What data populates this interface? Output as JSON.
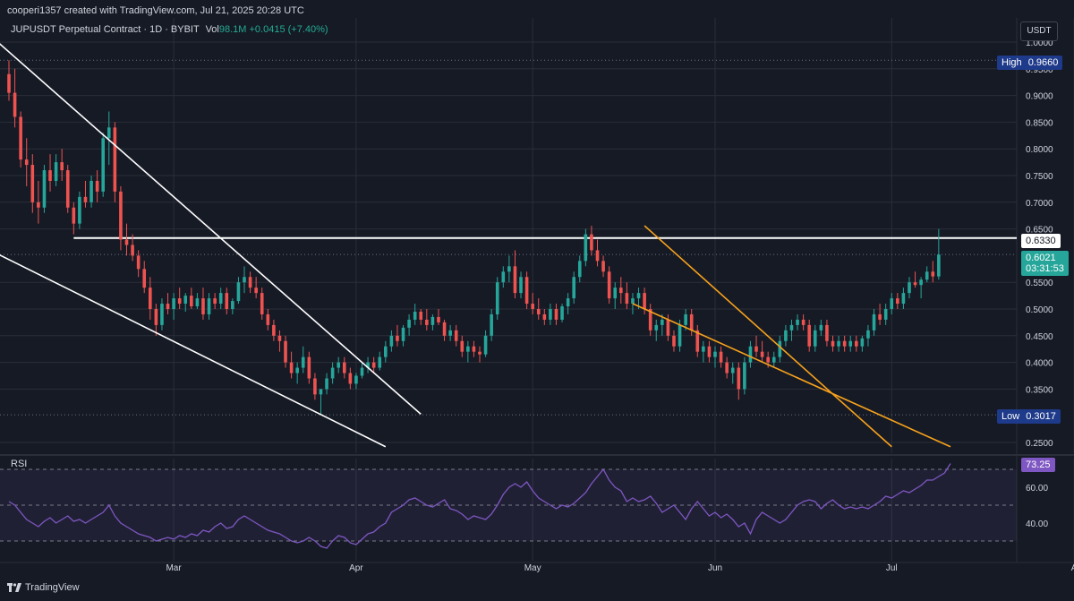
{
  "header": {
    "credit": "cooperi1357 created with TradingView.com, Jul 21, 2025 20:28 UTC",
    "symbol": "JUPUSDT Perpetual Contract · 1D · BYBIT",
    "vol_label": "Vol",
    "vol_value": "98.1M",
    "change": "+0.0415 (+7.40%)"
  },
  "currency_button": "USDT",
  "rsi_label": "RSI",
  "brand": "TradingView",
  "colors": {
    "background": "#161A25",
    "up": "#26A69A",
    "down": "#EF5350",
    "rsi_line": "#7E57C2",
    "trendline_white": "#FFFFFF",
    "trendline_orange": "#F7A21B",
    "grid": "#2A2E39"
  },
  "price_tags": {
    "high_label": "High",
    "high_value": "0.9660",
    "low_label": "Low",
    "low_value": "0.3017",
    "resistance": "0.6330",
    "last_price": "0.6021",
    "countdown": "03:31:53",
    "rsi_value": "73.25"
  },
  "chart_data": {
    "type": "candlestick",
    "price_axis": {
      "ticks": [
        "1.0000",
        "0.9500",
        "0.9000",
        "0.8500",
        "0.8000",
        "0.7500",
        "0.7000",
        "0.6500",
        "0.5500",
        "0.5000",
        "0.4500",
        "0.4000",
        "0.3500",
        "0.2500"
      ],
      "range": [
        0.23,
        1.02
      ]
    },
    "rsi_axis": {
      "ticks": [
        "60.00",
        "40.00"
      ],
      "range": [
        24,
        80
      ],
      "bands": [
        30,
        50,
        70
      ]
    },
    "time_axis": {
      "ticks": [
        "Mar",
        "Apr",
        "May",
        "Jun",
        "Jul",
        "A"
      ],
      "tick_days": [
        28,
        59,
        89,
        120,
        150,
        181
      ],
      "range_days": [
        0,
        187
      ]
    },
    "horizontal_lines": [
      {
        "price": 0.966,
        "style": "dotted"
      },
      {
        "price": 0.3017,
        "style": "dotted"
      },
      {
        "price": 0.633,
        "style": "solid",
        "from_day": 11
      },
      {
        "price": 0.6021,
        "style": "dotted"
      }
    ],
    "trendlines": [
      {
        "color": "white",
        "points": [
          [
            -5,
            1.03
          ],
          [
            70,
            0.303
          ]
        ]
      },
      {
        "color": "white",
        "points": [
          [
            -5,
            0.62
          ],
          [
            64,
            0.242
          ]
        ]
      },
      {
        "color": "orange",
        "points": [
          [
            108,
            0.656
          ],
          [
            150,
            0.242
          ]
        ]
      },
      {
        "color": "orange",
        "points": [
          [
            106,
            0.51
          ],
          [
            160,
            0.242
          ]
        ]
      }
    ],
    "ohlc": [
      [
        0.94,
        0.966,
        0.89,
        0.905
      ],
      [
        0.905,
        0.95,
        0.84,
        0.86
      ],
      [
        0.86,
        0.87,
        0.765,
        0.78
      ],
      [
        0.78,
        0.82,
        0.73,
        0.77
      ],
      [
        0.77,
        0.79,
        0.68,
        0.7
      ],
      [
        0.7,
        0.74,
        0.66,
        0.69
      ],
      [
        0.69,
        0.77,
        0.68,
        0.76
      ],
      [
        0.76,
        0.79,
        0.72,
        0.74
      ],
      [
        0.74,
        0.79,
        0.73,
        0.775
      ],
      [
        0.775,
        0.8,
        0.74,
        0.76
      ],
      [
        0.76,
        0.77,
        0.68,
        0.69
      ],
      [
        0.69,
        0.7,
        0.64,
        0.66
      ],
      [
        0.66,
        0.72,
        0.65,
        0.71
      ],
      [
        0.71,
        0.74,
        0.69,
        0.7
      ],
      [
        0.7,
        0.75,
        0.69,
        0.74
      ],
      [
        0.74,
        0.76,
        0.7,
        0.72
      ],
      [
        0.72,
        0.83,
        0.71,
        0.82
      ],
      [
        0.82,
        0.87,
        0.77,
        0.84
      ],
      [
        0.84,
        0.85,
        0.7,
        0.72
      ],
      [
        0.72,
        0.73,
        0.61,
        0.63
      ],
      [
        0.63,
        0.66,
        0.6,
        0.62
      ],
      [
        0.62,
        0.64,
        0.59,
        0.6
      ],
      [
        0.6,
        0.61,
        0.56,
        0.575
      ],
      [
        0.575,
        0.59,
        0.53,
        0.54
      ],
      [
        0.54,
        0.56,
        0.48,
        0.5
      ],
      [
        0.5,
        0.51,
        0.45,
        0.47
      ],
      [
        0.47,
        0.52,
        0.46,
        0.51
      ],
      [
        0.51,
        0.53,
        0.49,
        0.5
      ],
      [
        0.5,
        0.53,
        0.48,
        0.52
      ],
      [
        0.52,
        0.54,
        0.5,
        0.51
      ],
      [
        0.51,
        0.53,
        0.495,
        0.525
      ],
      [
        0.525,
        0.54,
        0.5,
        0.505
      ],
      [
        0.505,
        0.53,
        0.5,
        0.52
      ],
      [
        0.52,
        0.54,
        0.48,
        0.49
      ],
      [
        0.49,
        0.53,
        0.48,
        0.52
      ],
      [
        0.52,
        0.53,
        0.5,
        0.51
      ],
      [
        0.51,
        0.54,
        0.5,
        0.53
      ],
      [
        0.53,
        0.54,
        0.49,
        0.5
      ],
      [
        0.5,
        0.52,
        0.49,
        0.515
      ],
      [
        0.515,
        0.56,
        0.51,
        0.55
      ],
      [
        0.55,
        0.58,
        0.53,
        0.56
      ],
      [
        0.56,
        0.57,
        0.53,
        0.54
      ],
      [
        0.54,
        0.56,
        0.52,
        0.53
      ],
      [
        0.53,
        0.54,
        0.48,
        0.49
      ],
      [
        0.49,
        0.5,
        0.46,
        0.47
      ],
      [
        0.47,
        0.48,
        0.44,
        0.45
      ],
      [
        0.45,
        0.46,
        0.42,
        0.44
      ],
      [
        0.44,
        0.45,
        0.39,
        0.4
      ],
      [
        0.4,
        0.42,
        0.37,
        0.38
      ],
      [
        0.38,
        0.4,
        0.36,
        0.39
      ],
      [
        0.39,
        0.43,
        0.38,
        0.41
      ],
      [
        0.41,
        0.42,
        0.36,
        0.37
      ],
      [
        0.37,
        0.38,
        0.33,
        0.34
      ],
      [
        0.34,
        0.35,
        0.302,
        0.35
      ],
      [
        0.35,
        0.38,
        0.34,
        0.37
      ],
      [
        0.37,
        0.4,
        0.36,
        0.39
      ],
      [
        0.39,
        0.41,
        0.38,
        0.4
      ],
      [
        0.4,
        0.41,
        0.37,
        0.38
      ],
      [
        0.38,
        0.39,
        0.35,
        0.36
      ],
      [
        0.36,
        0.38,
        0.35,
        0.375
      ],
      [
        0.375,
        0.4,
        0.37,
        0.39
      ],
      [
        0.39,
        0.41,
        0.38,
        0.4
      ],
      [
        0.4,
        0.41,
        0.38,
        0.39
      ],
      [
        0.39,
        0.42,
        0.385,
        0.41
      ],
      [
        0.41,
        0.44,
        0.4,
        0.43
      ],
      [
        0.43,
        0.46,
        0.42,
        0.45
      ],
      [
        0.45,
        0.47,
        0.43,
        0.44
      ],
      [
        0.44,
        0.47,
        0.43,
        0.465
      ],
      [
        0.465,
        0.49,
        0.45,
        0.48
      ],
      [
        0.48,
        0.51,
        0.47,
        0.495
      ],
      [
        0.495,
        0.5,
        0.47,
        0.48
      ],
      [
        0.48,
        0.5,
        0.46,
        0.47
      ],
      [
        0.47,
        0.49,
        0.46,
        0.485
      ],
      [
        0.485,
        0.5,
        0.47,
        0.475
      ],
      [
        0.475,
        0.48,
        0.44,
        0.45
      ],
      [
        0.45,
        0.47,
        0.44,
        0.46
      ],
      [
        0.46,
        0.47,
        0.43,
        0.44
      ],
      [
        0.44,
        0.45,
        0.41,
        0.42
      ],
      [
        0.42,
        0.44,
        0.4,
        0.43
      ],
      [
        0.43,
        0.44,
        0.41,
        0.42
      ],
      [
        0.42,
        0.43,
        0.4,
        0.415
      ],
      [
        0.415,
        0.46,
        0.41,
        0.45
      ],
      [
        0.45,
        0.5,
        0.44,
        0.49
      ],
      [
        0.49,
        0.56,
        0.48,
        0.55
      ],
      [
        0.55,
        0.58,
        0.54,
        0.57
      ],
      [
        0.57,
        0.6,
        0.55,
        0.58
      ],
      [
        0.58,
        0.61,
        0.52,
        0.53
      ],
      [
        0.53,
        0.57,
        0.52,
        0.56
      ],
      [
        0.56,
        0.57,
        0.5,
        0.51
      ],
      [
        0.51,
        0.53,
        0.49,
        0.5
      ],
      [
        0.5,
        0.52,
        0.48,
        0.49
      ],
      [
        0.49,
        0.5,
        0.47,
        0.48
      ],
      [
        0.48,
        0.51,
        0.47,
        0.5
      ],
      [
        0.5,
        0.51,
        0.47,
        0.48
      ],
      [
        0.48,
        0.51,
        0.475,
        0.505
      ],
      [
        0.505,
        0.53,
        0.49,
        0.52
      ],
      [
        0.52,
        0.57,
        0.51,
        0.56
      ],
      [
        0.56,
        0.6,
        0.55,
        0.59
      ],
      [
        0.59,
        0.65,
        0.58,
        0.64
      ],
      [
        0.64,
        0.656,
        0.6,
        0.61
      ],
      [
        0.61,
        0.63,
        0.58,
        0.59
      ],
      [
        0.59,
        0.6,
        0.56,
        0.57
      ],
      [
        0.57,
        0.58,
        0.51,
        0.52
      ],
      [
        0.52,
        0.55,
        0.5,
        0.54
      ],
      [
        0.54,
        0.56,
        0.51,
        0.53
      ],
      [
        0.53,
        0.55,
        0.5,
        0.51
      ],
      [
        0.51,
        0.53,
        0.49,
        0.52
      ],
      [
        0.52,
        0.54,
        0.5,
        0.53
      ],
      [
        0.53,
        0.54,
        0.49,
        0.5
      ],
      [
        0.5,
        0.51,
        0.45,
        0.46
      ],
      [
        0.46,
        0.48,
        0.44,
        0.47
      ],
      [
        0.47,
        0.49,
        0.45,
        0.48
      ],
      [
        0.48,
        0.49,
        0.44,
        0.45
      ],
      [
        0.45,
        0.46,
        0.42,
        0.43
      ],
      [
        0.43,
        0.48,
        0.42,
        0.47
      ],
      [
        0.47,
        0.5,
        0.46,
        0.49
      ],
      [
        0.49,
        0.5,
        0.45,
        0.46
      ],
      [
        0.46,
        0.47,
        0.41,
        0.42
      ],
      [
        0.42,
        0.44,
        0.4,
        0.43
      ],
      [
        0.43,
        0.44,
        0.4,
        0.41
      ],
      [
        0.41,
        0.43,
        0.39,
        0.42
      ],
      [
        0.42,
        0.43,
        0.39,
        0.4
      ],
      [
        0.4,
        0.41,
        0.37,
        0.38
      ],
      [
        0.38,
        0.4,
        0.36,
        0.39
      ],
      [
        0.39,
        0.4,
        0.33,
        0.35
      ],
      [
        0.35,
        0.41,
        0.34,
        0.4
      ],
      [
        0.4,
        0.44,
        0.39,
        0.43
      ],
      [
        0.43,
        0.45,
        0.41,
        0.42
      ],
      [
        0.42,
        0.44,
        0.4,
        0.41
      ],
      [
        0.41,
        0.42,
        0.39,
        0.4
      ],
      [
        0.4,
        0.42,
        0.39,
        0.41
      ],
      [
        0.41,
        0.45,
        0.4,
        0.44
      ],
      [
        0.44,
        0.47,
        0.43,
        0.46
      ],
      [
        0.46,
        0.48,
        0.44,
        0.47
      ],
      [
        0.47,
        0.49,
        0.46,
        0.48
      ],
      [
        0.48,
        0.49,
        0.46,
        0.47
      ],
      [
        0.47,
        0.48,
        0.42,
        0.43
      ],
      [
        0.43,
        0.47,
        0.42,
        0.46
      ],
      [
        0.46,
        0.48,
        0.45,
        0.47
      ],
      [
        0.47,
        0.48,
        0.43,
        0.44
      ],
      [
        0.44,
        0.45,
        0.42,
        0.43
      ],
      [
        0.43,
        0.45,
        0.42,
        0.44
      ],
      [
        0.44,
        0.45,
        0.42,
        0.43
      ],
      [
        0.43,
        0.45,
        0.42,
        0.44
      ],
      [
        0.44,
        0.45,
        0.42,
        0.43
      ],
      [
        0.43,
        0.45,
        0.42,
        0.445
      ],
      [
        0.445,
        0.47,
        0.43,
        0.46
      ],
      [
        0.46,
        0.5,
        0.45,
        0.49
      ],
      [
        0.49,
        0.51,
        0.47,
        0.48
      ],
      [
        0.48,
        0.51,
        0.47,
        0.5
      ],
      [
        0.5,
        0.53,
        0.49,
        0.52
      ],
      [
        0.52,
        0.53,
        0.5,
        0.51
      ],
      [
        0.51,
        0.54,
        0.5,
        0.53
      ],
      [
        0.53,
        0.56,
        0.52,
        0.55
      ],
      [
        0.55,
        0.57,
        0.54,
        0.545
      ],
      [
        0.545,
        0.56,
        0.52,
        0.555
      ],
      [
        0.555,
        0.58,
        0.55,
        0.57
      ],
      [
        0.57,
        0.59,
        0.55,
        0.561
      ],
      [
        0.561,
        0.65,
        0.555,
        0.6021
      ]
    ],
    "rsi": [
      52,
      50,
      46,
      42,
      40,
      38,
      41,
      43,
      40,
      42,
      44,
      41,
      42,
      40,
      42,
      44,
      46,
      50,
      44,
      40,
      38,
      36,
      34,
      33,
      32,
      30,
      31,
      32,
      31,
      33,
      32,
      34,
      33,
      36,
      35,
      38,
      40,
      37,
      38,
      42,
      44,
      42,
      40,
      38,
      36,
      35,
      34,
      32,
      30,
      29,
      30,
      32,
      30,
      27,
      26,
      30,
      33,
      32,
      29,
      28,
      31,
      34,
      35,
      38,
      40,
      46,
      48,
      50,
      53,
      54,
      52,
      50,
      49,
      51,
      53,
      48,
      47,
      45,
      42,
      44,
      43,
      42,
      45,
      50,
      56,
      60,
      62,
      60,
      63,
      58,
      54,
      52,
      50,
      48,
      50,
      49,
      51,
      54,
      57,
      62,
      66,
      70,
      64,
      60,
      58,
      52,
      54,
      52,
      53,
      55,
      51,
      46,
      48,
      50,
      46,
      42,
      48,
      52,
      48,
      44,
      46,
      43,
      45,
      42,
      38,
      40,
      34,
      42,
      46,
      44,
      42,
      40,
      42,
      46,
      50,
      52,
      53,
      52,
      48,
      51,
      53,
      50,
      48,
      49,
      48,
      49,
      48,
      50,
      52,
      55,
      54,
      56,
      58,
      57,
      59,
      61,
      64,
      64,
      66,
      68,
      73.25
    ]
  }
}
